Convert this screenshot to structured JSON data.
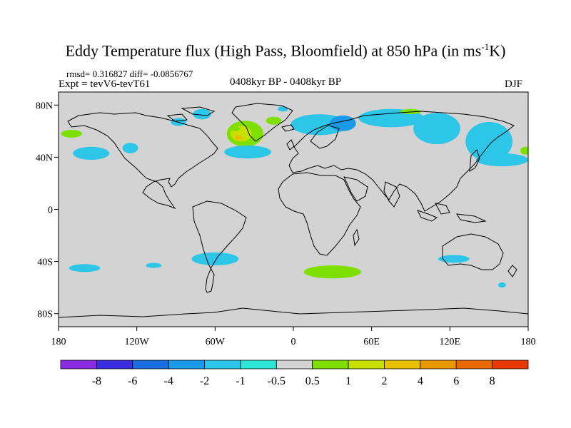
{
  "title": {
    "main": "Eddy Temperature flux (High Pass, Bloomfield) at 850 hPa (in ms",
    "superscript": "-1",
    "suffix": "K)"
  },
  "stats_line": "rmsd= 0.316827 diff= -0.0856767",
  "experiment": "Expt = tevV6-tevT61",
  "period": "0408kyr BP - 0408kyr BP",
  "season": "DJF",
  "map": {
    "projection": "cylindrical-equidistant",
    "lon_range": [
      -180,
      180
    ],
    "lat_range": [
      -90,
      90
    ],
    "background_color": "#d3d3d3",
    "coastline_color": "#000000",
    "y_ticks": [
      {
        "lat": 80,
        "label": "80N"
      },
      {
        "lat": 40,
        "label": "40N"
      },
      {
        "lat": 0,
        "label": "0"
      },
      {
        "lat": -40,
        "label": "40S"
      },
      {
        "lat": -80,
        "label": "80S"
      }
    ],
    "x_ticks": [
      {
        "lon": -180,
        "label": "180"
      },
      {
        "lon": -120,
        "label": "120W"
      },
      {
        "lon": -60,
        "label": "60W"
      },
      {
        "lon": 0,
        "label": "0"
      },
      {
        "lon": 60,
        "label": "60E"
      },
      {
        "lon": 120,
        "label": "120E"
      },
      {
        "lon": 180,
        "label": "180"
      }
    ]
  },
  "chart_data": {
    "type": "heatmap",
    "variable": "Eddy temperature flux difference",
    "units": "m s-1 K",
    "contour_levels": [
      -8,
      -6,
      -4,
      -2,
      -1,
      -0.5,
      0.5,
      1,
      2,
      4,
      6,
      8
    ],
    "colorbar_labels": [
      "-8",
      "-6",
      "-4",
      "-2",
      "-1",
      "-0.5",
      "0.5",
      "1",
      "2",
      "4",
      "6",
      "8"
    ],
    "colors": [
      "#8a2be2",
      "#3a2ee0",
      "#1a6ee0",
      "#1a9ae8",
      "#2dc6e8",
      "#2de6d8",
      "#d3d3d3",
      "#7ee000",
      "#c8e000",
      "#e8c000",
      "#e89a00",
      "#e86a00",
      "#e83a00"
    ],
    "regions": [
      {
        "lon": -155,
        "lat": 43,
        "rx": 14,
        "ry": 5,
        "level": "-1"
      },
      {
        "lon": -125,
        "lat": 47,
        "rx": 6,
        "ry": 4,
        "level": "-1"
      },
      {
        "lon": -170,
        "lat": 58,
        "rx": 8,
        "ry": 3,
        "level": "0.5"
      },
      {
        "lon": -70,
        "lat": 73,
        "rx": 7,
        "ry": 4,
        "level": "-1"
      },
      {
        "lon": -88,
        "lat": 67,
        "rx": 6,
        "ry": 3,
        "level": "-1"
      },
      {
        "lon": -37,
        "lat": 58,
        "rx": 14,
        "ry": 10,
        "level": "0.5"
      },
      {
        "lon": -40,
        "lat": 58,
        "rx": 8,
        "ry": 6,
        "level": "1"
      },
      {
        "lon": -42,
        "lat": 55,
        "rx": 3,
        "ry": 2,
        "level": "2"
      },
      {
        "lon": -45,
        "lat": 62,
        "rx": 4,
        "ry": 2,
        "level": "0.5"
      },
      {
        "lon": -15,
        "lat": 68,
        "rx": 6,
        "ry": 3,
        "level": "0.5"
      },
      {
        "lon": -35,
        "lat": 44,
        "rx": 18,
        "ry": 5,
        "level": "-1"
      },
      {
        "lon": -8,
        "lat": 77,
        "rx": 4,
        "ry": 2,
        "level": "-1"
      },
      {
        "lon": 20,
        "lat": 65,
        "rx": 22,
        "ry": 8,
        "level": "-1"
      },
      {
        "lon": 38,
        "lat": 66,
        "rx": 10,
        "ry": 6,
        "level": "-2"
      },
      {
        "lon": 75,
        "lat": 70,
        "rx": 25,
        "ry": 7,
        "level": "-1"
      },
      {
        "lon": 90,
        "lat": 75,
        "rx": 8,
        "ry": 2,
        "level": "0.5"
      },
      {
        "lon": 110,
        "lat": 62,
        "rx": 18,
        "ry": 12,
        "level": "-1"
      },
      {
        "lon": 150,
        "lat": 52,
        "rx": 18,
        "ry": 15,
        "level": "-1"
      },
      {
        "lon": 160,
        "lat": 38,
        "rx": 20,
        "ry": 5,
        "level": "-1"
      },
      {
        "lon": 178,
        "lat": 45,
        "rx": 4,
        "ry": 3,
        "level": "0.5"
      },
      {
        "lon": -160,
        "lat": -45,
        "rx": 12,
        "ry": 3,
        "level": "-1"
      },
      {
        "lon": -107,
        "lat": -43,
        "rx": 6,
        "ry": 2,
        "level": "-1"
      },
      {
        "lon": -60,
        "lat": -38,
        "rx": 18,
        "ry": 5,
        "level": "-1"
      },
      {
        "lon": 30,
        "lat": -48,
        "rx": 22,
        "ry": 5,
        "level": "0.5"
      },
      {
        "lon": 123,
        "lat": -38,
        "rx": 12,
        "ry": 3,
        "level": "-1"
      },
      {
        "lon": 160,
        "lat": -58,
        "rx": 3,
        "ry": 2,
        "level": "-1"
      }
    ]
  }
}
